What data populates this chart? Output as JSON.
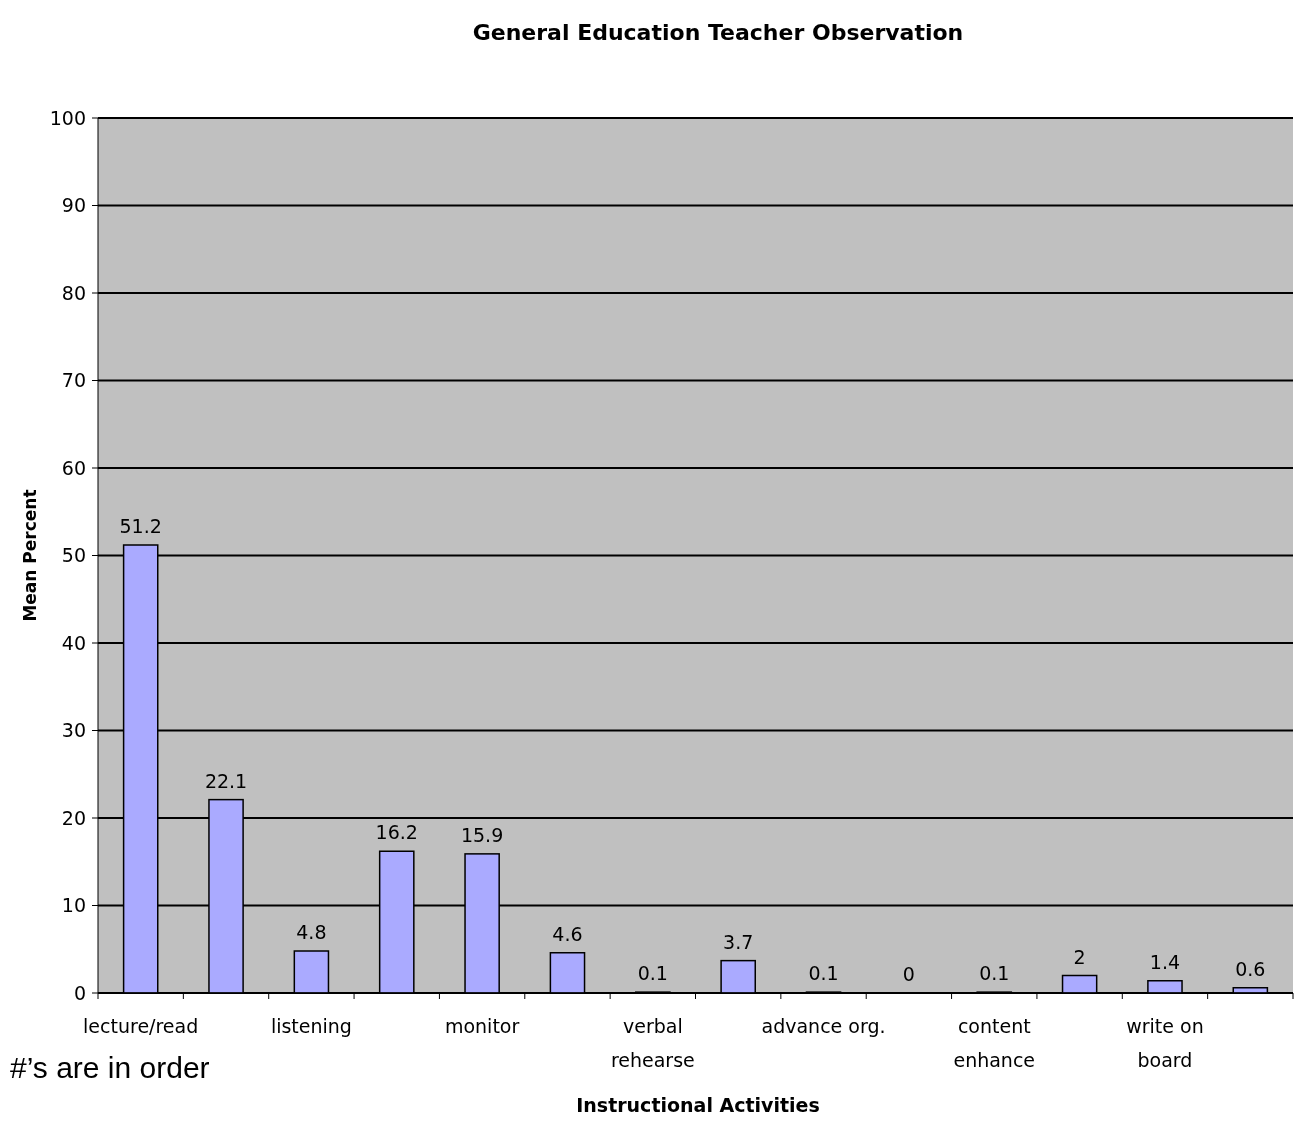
{
  "chart_data": {
    "type": "bar",
    "title": "General Education Teacher Observation",
    "xlabel": "Instructional Activities",
    "ylabel": "Mean Percent",
    "categories": [
      "lecture/read",
      null,
      "listening",
      null,
      "monitor",
      null,
      "verbal rehearse",
      null,
      "advance org.",
      null,
      "content enhance",
      null,
      "write on board",
      null
    ],
    "values": [
      51.2,
      22.1,
      4.8,
      16.2,
      15.9,
      4.6,
      0.1,
      3.7,
      0.1,
      0,
      0.1,
      2,
      1.4,
      0.6
    ],
    "color": "#aaaaff",
    "ylim": [
      0,
      100
    ],
    "yticks": [
      0,
      10,
      20,
      30,
      40,
      50,
      60,
      70,
      80,
      90,
      100
    ],
    "grid": "y",
    "data_labels": true,
    "annotations": [
      "#’s are in order"
    ]
  }
}
